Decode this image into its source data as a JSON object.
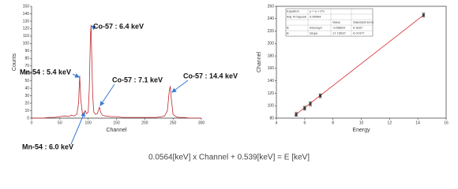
{
  "chart_data": [
    {
      "type": "line",
      "xlabel": "Channel",
      "ylabel": "Counts",
      "x": [
        0,
        10,
        20,
        30,
        40,
        50,
        60,
        65,
        70,
        75,
        80,
        83,
        85,
        87,
        90,
        93,
        95,
        97,
        100,
        102,
        104,
        105,
        106,
        108,
        110,
        113,
        116,
        118,
        120,
        122,
        125,
        130,
        140,
        150,
        160,
        170,
        180,
        190,
        200,
        210,
        220,
        230,
        235,
        240,
        243,
        245,
        247,
        250,
        255,
        260,
        270,
        280,
        290,
        300
      ],
      "values": [
        0,
        0,
        0,
        1,
        1,
        2,
        3,
        2,
        4,
        3,
        5,
        20,
        57,
        25,
        5,
        8,
        10,
        6,
        8,
        40,
        110,
        125,
        90,
        30,
        8,
        5,
        6,
        10,
        15,
        8,
        4,
        3,
        2,
        2,
        1,
        1,
        1,
        1,
        1,
        1,
        1,
        2,
        3,
        10,
        35,
        43,
        25,
        5,
        2,
        1,
        1,
        0,
        0,
        0
      ],
      "color": "#c0282d",
      "xlim": [
        0,
        300
      ],
      "xticks": [
        0,
        50,
        100,
        150,
        200,
        250,
        300
      ],
      "ylim": [
        0,
        150
      ],
      "yticks": [
        0,
        10,
        20,
        30,
        40,
        50,
        60,
        70,
        80,
        90,
        100,
        110,
        120,
        130,
        140,
        150
      ],
      "annotations": [
        "Co-57 : 6.4 keV",
        "Mn-54 : 5.4 keV",
        "Co-57 : 7.1 keV",
        "Co-57 : 14.4 keV",
        "Mn-54 : 6.0 keV"
      ]
    },
    {
      "type": "scatter",
      "xlabel": "Energy",
      "ylabel": "Channel",
      "x": [
        5.4,
        6.0,
        6.4,
        7.1,
        14.4
      ],
      "values": [
        86,
        96,
        103,
        116,
        246
      ],
      "errors": [
        3,
        3,
        3,
        3,
        3
      ],
      "color": "#333333",
      "fit": {
        "x": [
          5.3,
          14.5
        ],
        "values": [
          84.4,
          247.5
        ],
        "color": "#d62728"
      },
      "xlim": [
        4,
        16
      ],
      "xticks": [
        4,
        6,
        8,
        10,
        12,
        14,
        16
      ],
      "ylim": [
        80,
        260
      ],
      "yticks": [
        80,
        100,
        120,
        140,
        160,
        180,
        200,
        220,
        240,
        260
      ],
      "inset": {
        "rows": [
          [
            "Equation",
            "y = a + b*x"
          ],
          [
            "Adj. R-Square",
            "0.99994"
          ],
          [
            "B",
            "Intercept",
            "-9.55664",
            "0.9167"
          ],
          [
            "B",
            "Slope",
            "17.73037",
            "0.07477"
          ]
        ],
        "header": [
          "Value",
          "Standard Error"
        ]
      }
    }
  ],
  "caption": "0.0564[keV] x Channel + 0.539[keV] = E [keV]"
}
